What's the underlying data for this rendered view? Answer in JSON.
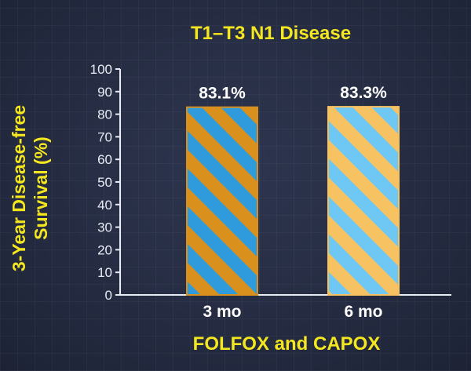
{
  "chart_data": {
    "type": "bar",
    "title": "T1–T3 N1 Disease",
    "xlabel": "FOLFOX and CAPOX",
    "ylabel_line1": "3-Year Disease-free",
    "ylabel_line2": "Survival (%)",
    "categories": [
      "3 mo",
      "6 mo"
    ],
    "values": [
      83.1,
      83.3
    ],
    "value_labels": [
      "83.1%",
      "83.3%"
    ],
    "ylim": [
      0,
      100
    ],
    "yticks": [
      "0",
      "10",
      "20",
      "30",
      "40",
      "50",
      "60",
      "70",
      "80",
      "90",
      "100"
    ],
    "grid": false,
    "colors": {
      "title": "#f4e61f",
      "axis": "#e8ecf2",
      "bar1_base": "#d9901c",
      "bar1_stripe": "#2f9bdc",
      "bar2_base": "#f7c262",
      "bar2_stripe": "#6ec8f3"
    }
  }
}
